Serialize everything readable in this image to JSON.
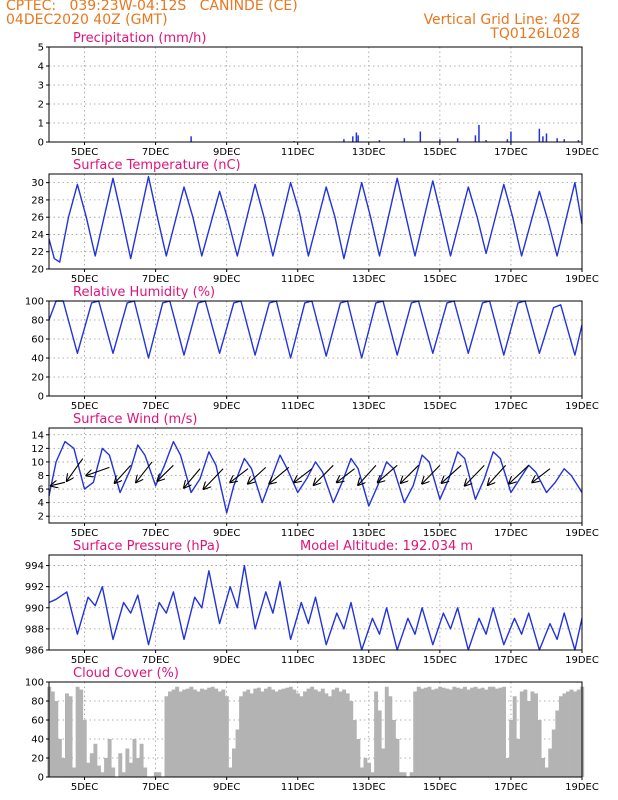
{
  "header": {
    "line1": "CPTEC:   039:23W-04:12S   CANINDE (CE)",
    "line2": "04DEC2020 40Z (GMT)",
    "right1": "Vertical Grid Line: 40Z",
    "right2": "TQ0126L028"
  },
  "colors": {
    "header": "#e8771e",
    "title": "#e0137b",
    "line": "#2233dd",
    "bar": "#b3b3b3",
    "arrow": "#000000",
    "grid": "#999999"
  },
  "chart_data": [
    {
      "type": "bar",
      "title": "Precipitation (mm/h)",
      "ylim": [
        0,
        5
      ],
      "yticks": [
        0,
        1,
        2,
        3,
        4,
        5
      ],
      "x_tick_labels": [
        "5DEC",
        "7DEC",
        "9DEC",
        "11DEC",
        "13DEC",
        "15DEC",
        "17DEC",
        "19DEC"
      ],
      "x_tick_days": [
        5,
        7,
        9,
        11,
        13,
        15,
        17,
        19
      ],
      "xlim_days": [
        4.0,
        19.0
      ],
      "grid": true,
      "x": [
        8.0,
        10.9,
        12.3,
        12.55,
        12.65,
        12.7,
        13.3,
        14.0,
        14.45,
        15.0,
        15.5,
        16.0,
        16.1,
        16.3,
        16.9,
        17.0,
        17.8,
        17.9,
        18.0,
        18.3,
        18.5,
        18.9
      ],
      "values": [
        0.3,
        0.05,
        0.15,
        0.3,
        0.5,
        0.35,
        0.1,
        0.2,
        0.55,
        0.15,
        0.2,
        0.35,
        0.9,
        0.1,
        0.15,
        0.55,
        0.7,
        0.3,
        0.45,
        0.2,
        0.15,
        0.1
      ]
    },
    {
      "type": "line",
      "title": "Surface Temperature (nC)",
      "ylim": [
        20,
        31
      ],
      "yticks": [
        20,
        22,
        24,
        26,
        28,
        30
      ],
      "x_tick_labels": [
        "5DEC",
        "7DEC",
        "9DEC",
        "11DEC",
        "13DEC",
        "15DEC",
        "17DEC",
        "19DEC"
      ],
      "x_tick_days": [
        5,
        7,
        9,
        11,
        13,
        15,
        17,
        19
      ],
      "xlim_days": [
        4.0,
        19.0
      ],
      "grid": true,
      "series": [
        {
          "x": [
            4.0,
            4.15,
            4.3,
            4.55,
            4.8,
            5.05,
            5.3,
            5.8,
            6.05,
            6.3,
            6.8,
            7.05,
            7.3,
            7.8,
            8.05,
            8.3,
            8.8,
            9.05,
            9.3,
            9.8,
            10.05,
            10.3,
            10.8,
            11.05,
            11.3,
            11.8,
            12.05,
            12.3,
            12.8,
            13.05,
            13.3,
            13.8,
            14.05,
            14.3,
            14.8,
            15.05,
            15.3,
            15.8,
            16.05,
            16.3,
            16.8,
            17.05,
            17.3,
            17.8,
            18.05,
            18.3,
            18.8,
            19.0
          ],
          "y": [
            23.5,
            21.2,
            20.8,
            26.0,
            29.8,
            26.0,
            21.5,
            30.5,
            26.0,
            21.2,
            30.7,
            26.0,
            21.5,
            29.5,
            26.0,
            21.5,
            29.0,
            25.5,
            21.5,
            29.8,
            26.0,
            21.5,
            30.0,
            26.5,
            21.5,
            29.5,
            26.0,
            21.2,
            30.0,
            26.0,
            21.5,
            30.5,
            26.0,
            21.5,
            30.2,
            26.0,
            21.5,
            29.5,
            26.0,
            21.8,
            29.8,
            26.0,
            21.5,
            29.0,
            25.5,
            21.5,
            30.0,
            25.2
          ]
        }
      ]
    },
    {
      "type": "line",
      "title": "Relative Humidity (%)",
      "ylim": [
        0,
        100
      ],
      "yticks": [
        0,
        20,
        40,
        60,
        80,
        100
      ],
      "x_tick_labels": [
        "5DEC",
        "7DEC",
        "9DEC",
        "11DEC",
        "13DEC",
        "15DEC",
        "17DEC",
        "19DEC"
      ],
      "x_tick_days": [
        5,
        7,
        9,
        11,
        13,
        15,
        17,
        19
      ],
      "xlim_days": [
        4.0,
        19.0
      ],
      "grid": true,
      "series": [
        {
          "x": [
            4.0,
            4.2,
            4.4,
            4.8,
            5.2,
            5.4,
            5.8,
            6.2,
            6.4,
            6.8,
            7.2,
            7.4,
            7.8,
            8.2,
            8.4,
            8.8,
            9.2,
            9.4,
            9.8,
            10.2,
            10.4,
            10.8,
            11.2,
            11.4,
            11.8,
            12.2,
            12.4,
            12.8,
            13.2,
            13.4,
            13.8,
            14.2,
            14.4,
            14.8,
            15.2,
            15.4,
            15.8,
            16.2,
            16.4,
            16.8,
            17.2,
            17.4,
            17.8,
            18.2,
            18.4,
            18.8,
            19.0
          ],
          "y": [
            80,
            100,
            100,
            45,
            98,
            100,
            45,
            98,
            100,
            40,
            98,
            100,
            43,
            98,
            100,
            45,
            98,
            100,
            43,
            98,
            100,
            40,
            98,
            100,
            42,
            98,
            100,
            40,
            98,
            100,
            43,
            98,
            100,
            45,
            98,
            100,
            45,
            98,
            100,
            43,
            98,
            100,
            45,
            93,
            96,
            43,
            75
          ]
        }
      ]
    },
    {
      "type": "line",
      "title": "Surface Wind (m/s)",
      "ylim": [
        1,
        15
      ],
      "yticks": [
        2,
        4,
        6,
        8,
        10,
        12,
        14
      ],
      "x_tick_labels": [
        "5DEC",
        "7DEC",
        "9DEC",
        "11DEC",
        "13DEC",
        "15DEC",
        "17DEC",
        "19DEC"
      ],
      "x_tick_days": [
        5,
        7,
        9,
        11,
        13,
        15,
        17,
        19
      ],
      "xlim_days": [
        4.0,
        19.0
      ],
      "grid": true,
      "series": [
        {
          "x": [
            4.0,
            4.2,
            4.45,
            4.7,
            5.0,
            5.25,
            5.5,
            5.7,
            6.0,
            6.3,
            6.5,
            6.7,
            7.0,
            7.25,
            7.5,
            7.7,
            8.0,
            8.25,
            8.5,
            8.7,
            9.0,
            9.2,
            9.5,
            9.7,
            10.0,
            10.25,
            10.5,
            10.7,
            11.0,
            11.25,
            11.5,
            11.7,
            12.0,
            12.25,
            12.5,
            12.7,
            13.0,
            13.25,
            13.5,
            13.7,
            14.0,
            14.25,
            14.5,
            14.7,
            15.0,
            15.25,
            15.5,
            15.7,
            16.0,
            16.25,
            16.5,
            16.7,
            17.0,
            17.25,
            17.5,
            17.7,
            18.0,
            18.25,
            18.5,
            18.7,
            19.0
          ],
          "y": [
            5.0,
            10.0,
            13.0,
            12.0,
            6.0,
            7.0,
            12.0,
            11.0,
            5.5,
            9.0,
            12.5,
            11.0,
            6.5,
            9.5,
            13.0,
            11.0,
            5.5,
            7.5,
            11.5,
            9.5,
            2.5,
            6.5,
            10.5,
            9.0,
            4.0,
            7.5,
            11.0,
            9.0,
            5.5,
            7.5,
            10.0,
            8.5,
            4.0,
            7.0,
            10.5,
            9.0,
            3.5,
            6.5,
            10.0,
            9.0,
            4.0,
            6.5,
            11.0,
            10.0,
            4.5,
            7.5,
            11.5,
            10.5,
            4.5,
            7.5,
            11.5,
            10.5,
            5.5,
            7.5,
            9.5,
            8.5,
            5.5,
            7.0,
            9.0,
            8.0,
            5.5
          ]
        }
      ],
      "wind_vectors_start": [
        [
          4.45,
          7.0
        ],
        [
          4.95,
          10.5
        ],
        [
          5.7,
          9.2
        ],
        [
          6.3,
          9.5
        ],
        [
          6.9,
          10.0
        ],
        [
          7.5,
          9.5
        ],
        [
          8.25,
          9.0
        ],
        [
          8.9,
          9.0
        ],
        [
          9.6,
          9.0
        ],
        [
          10.1,
          9.2
        ],
        [
          10.75,
          9.2
        ],
        [
          11.4,
          9.0
        ],
        [
          12.0,
          9.5
        ],
        [
          12.6,
          9.0
        ],
        [
          13.2,
          9.5
        ],
        [
          13.8,
          9.5
        ],
        [
          14.4,
          9.5
        ],
        [
          15.0,
          9.5
        ],
        [
          15.6,
          9.5
        ],
        [
          16.25,
          9.5
        ],
        [
          16.85,
          9.5
        ],
        [
          17.5,
          9.5
        ],
        [
          18.1,
          9.0
        ]
      ],
      "wind_vectors_end": [
        [
          4.05,
          6.5
        ],
        [
          4.5,
          7.2
        ],
        [
          5.05,
          8.0
        ],
        [
          5.85,
          6.9
        ],
        [
          6.45,
          7.0
        ],
        [
          7.05,
          7.2
        ],
        [
          7.8,
          6.2
        ],
        [
          8.35,
          6.0
        ],
        [
          9.1,
          7.0
        ],
        [
          9.6,
          6.8
        ],
        [
          10.2,
          6.8
        ],
        [
          10.9,
          7.0
        ],
        [
          11.45,
          6.6
        ],
        [
          12.1,
          7.0
        ],
        [
          12.7,
          6.6
        ],
        [
          13.25,
          7.0
        ],
        [
          13.9,
          6.9
        ],
        [
          14.5,
          6.8
        ],
        [
          15.05,
          6.9
        ],
        [
          15.7,
          6.5
        ],
        [
          16.35,
          6.6
        ],
        [
          16.95,
          6.8
        ],
        [
          17.6,
          7.0
        ]
      ]
    },
    {
      "type": "line",
      "title": "Surface Pressure (hPa)",
      "annotation": "Model Altitude: 192.034 m",
      "ylim": [
        986,
        995
      ],
      "yticks": [
        986,
        988,
        990,
        992,
        994
      ],
      "x_tick_labels": [
        "5DEC",
        "7DEC",
        "9DEC",
        "11DEC",
        "13DEC",
        "15DEC",
        "17DEC",
        "19DEC"
      ],
      "x_tick_days": [
        5,
        7,
        9,
        11,
        13,
        15,
        17,
        19
      ],
      "xlim_days": [
        4.0,
        19.0
      ],
      "grid": true,
      "series": [
        {
          "x": [
            4.0,
            4.2,
            4.5,
            4.8,
            5.1,
            5.3,
            5.5,
            5.8,
            6.1,
            6.3,
            6.5,
            6.8,
            7.1,
            7.3,
            7.5,
            7.8,
            8.1,
            8.3,
            8.5,
            8.8,
            9.1,
            9.3,
            9.5,
            9.8,
            10.1,
            10.3,
            10.5,
            10.8,
            11.1,
            11.3,
            11.5,
            11.8,
            12.1,
            12.3,
            12.5,
            12.8,
            13.1,
            13.3,
            13.5,
            13.8,
            14.1,
            14.3,
            14.5,
            14.8,
            15.1,
            15.3,
            15.5,
            15.8,
            16.1,
            16.3,
            16.5,
            16.8,
            17.1,
            17.3,
            17.5,
            17.8,
            18.1,
            18.3,
            18.5,
            18.8,
            19.0
          ],
          "y": [
            990.5,
            990.8,
            991.5,
            987.5,
            991.0,
            990.2,
            992.0,
            987.0,
            990.5,
            989.5,
            991.2,
            986.5,
            990.5,
            989.5,
            991.5,
            987.0,
            991.0,
            990.0,
            993.5,
            988.5,
            992.0,
            990.0,
            994.0,
            988.0,
            991.5,
            989.5,
            992.5,
            987.0,
            990.5,
            988.5,
            991.0,
            986.5,
            989.5,
            988.0,
            990.5,
            986.0,
            989.0,
            987.5,
            990.0,
            986.0,
            989.0,
            987.5,
            990.0,
            986.5,
            989.5,
            988.0,
            990.0,
            986.0,
            989.0,
            987.5,
            990.0,
            986.5,
            989.0,
            987.5,
            989.5,
            986.0,
            988.5,
            987.0,
            989.5,
            986.0,
            989.0
          ]
        }
      ]
    },
    {
      "type": "area",
      "title": "Cloud Cover (%)",
      "ylim": [
        0,
        100
      ],
      "yticks": [
        0,
        20,
        40,
        60,
        80,
        100
      ],
      "x_tick_labels": [
        "5DEC",
        "7DEC",
        "9DEC",
        "11DEC",
        "13DEC",
        "15DEC",
        "17DEC",
        "19DEC"
      ],
      "x_tick_days": [
        5,
        7,
        9,
        11,
        13,
        15,
        17,
        19
      ],
      "xlim_days": [
        4.0,
        19.0
      ],
      "grid": true,
      "x": [
        4.0,
        4.1,
        4.2,
        4.3,
        4.4,
        4.5,
        4.6,
        4.7,
        4.8,
        4.9,
        5.0,
        5.1,
        5.2,
        5.3,
        5.4,
        5.5,
        5.6,
        5.7,
        5.8,
        5.9,
        6.0,
        6.1,
        6.2,
        6.3,
        6.4,
        6.5,
        6.6,
        6.7,
        6.8,
        6.9,
        7.0,
        7.1,
        7.2,
        7.3,
        7.4,
        7.5,
        7.6,
        7.7,
        7.8,
        7.9,
        8.0,
        8.1,
        8.2,
        8.3,
        8.4,
        8.5,
        8.6,
        8.7,
        8.8,
        8.9,
        9.0,
        9.1,
        9.2,
        9.3,
        9.4,
        9.5,
        9.6,
        9.7,
        9.8,
        9.9,
        10.0,
        10.1,
        10.2,
        10.3,
        10.4,
        10.5,
        10.6,
        10.7,
        10.8,
        10.9,
        11.0,
        11.1,
        11.2,
        11.3,
        11.4,
        11.5,
        11.6,
        11.7,
        11.8,
        11.9,
        12.0,
        12.1,
        12.2,
        12.3,
        12.4,
        12.5,
        12.6,
        12.7,
        12.8,
        12.9,
        13.0,
        13.1,
        13.2,
        13.3,
        13.4,
        13.5,
        13.6,
        13.7,
        13.8,
        13.9,
        14.0,
        14.1,
        14.2,
        14.3,
        14.4,
        14.5,
        14.6,
        14.7,
        14.8,
        14.9,
        15.0,
        15.1,
        15.2,
        15.3,
        15.4,
        15.5,
        15.6,
        15.7,
        15.8,
        15.9,
        16.0,
        16.1,
        16.2,
        16.3,
        16.4,
        16.5,
        16.6,
        16.7,
        16.8,
        16.9,
        17.0,
        17.1,
        17.2,
        17.3,
        17.4,
        17.5,
        17.6,
        17.7,
        17.8,
        17.9,
        18.0,
        18.1,
        18.2,
        18.3,
        18.4,
        18.5,
        18.6,
        18.7,
        18.8,
        18.9,
        19.0
      ],
      "values": [
        95,
        90,
        80,
        40,
        20,
        88,
        85,
        10,
        95,
        92,
        60,
        15,
        25,
        35,
        12,
        5,
        20,
        40,
        10,
        0,
        25,
        5,
        30,
        15,
        40,
        20,
        35,
        10,
        0,
        0,
        5,
        5,
        0,
        85,
        90,
        92,
        95,
        90,
        92,
        93,
        95,
        92,
        90,
        93,
        92,
        94,
        95,
        93,
        90,
        92,
        85,
        10,
        30,
        50,
        85,
        90,
        92,
        88,
        93,
        94,
        90,
        93,
        95,
        92,
        90,
        92,
        93,
        94,
        95,
        92,
        88,
        85,
        90,
        93,
        95,
        92,
        90,
        93,
        88,
        85,
        92,
        94,
        90,
        92,
        88,
        80,
        60,
        40,
        10,
        20,
        15,
        5,
        90,
        70,
        30,
        95,
        85,
        60,
        40,
        5,
        5,
        0,
        5,
        90,
        95,
        93,
        94,
        95,
        92,
        93,
        95,
        94,
        93,
        92,
        95,
        94,
        93,
        95,
        92,
        94,
        95,
        93,
        94,
        92,
        95,
        95,
        93,
        94,
        95,
        20,
        60,
        85,
        40,
        90,
        92,
        80,
        90,
        88,
        60,
        20,
        10,
        30,
        50,
        70,
        85,
        88,
        90,
        92,
        90,
        92,
        95
      ]
    }
  ]
}
